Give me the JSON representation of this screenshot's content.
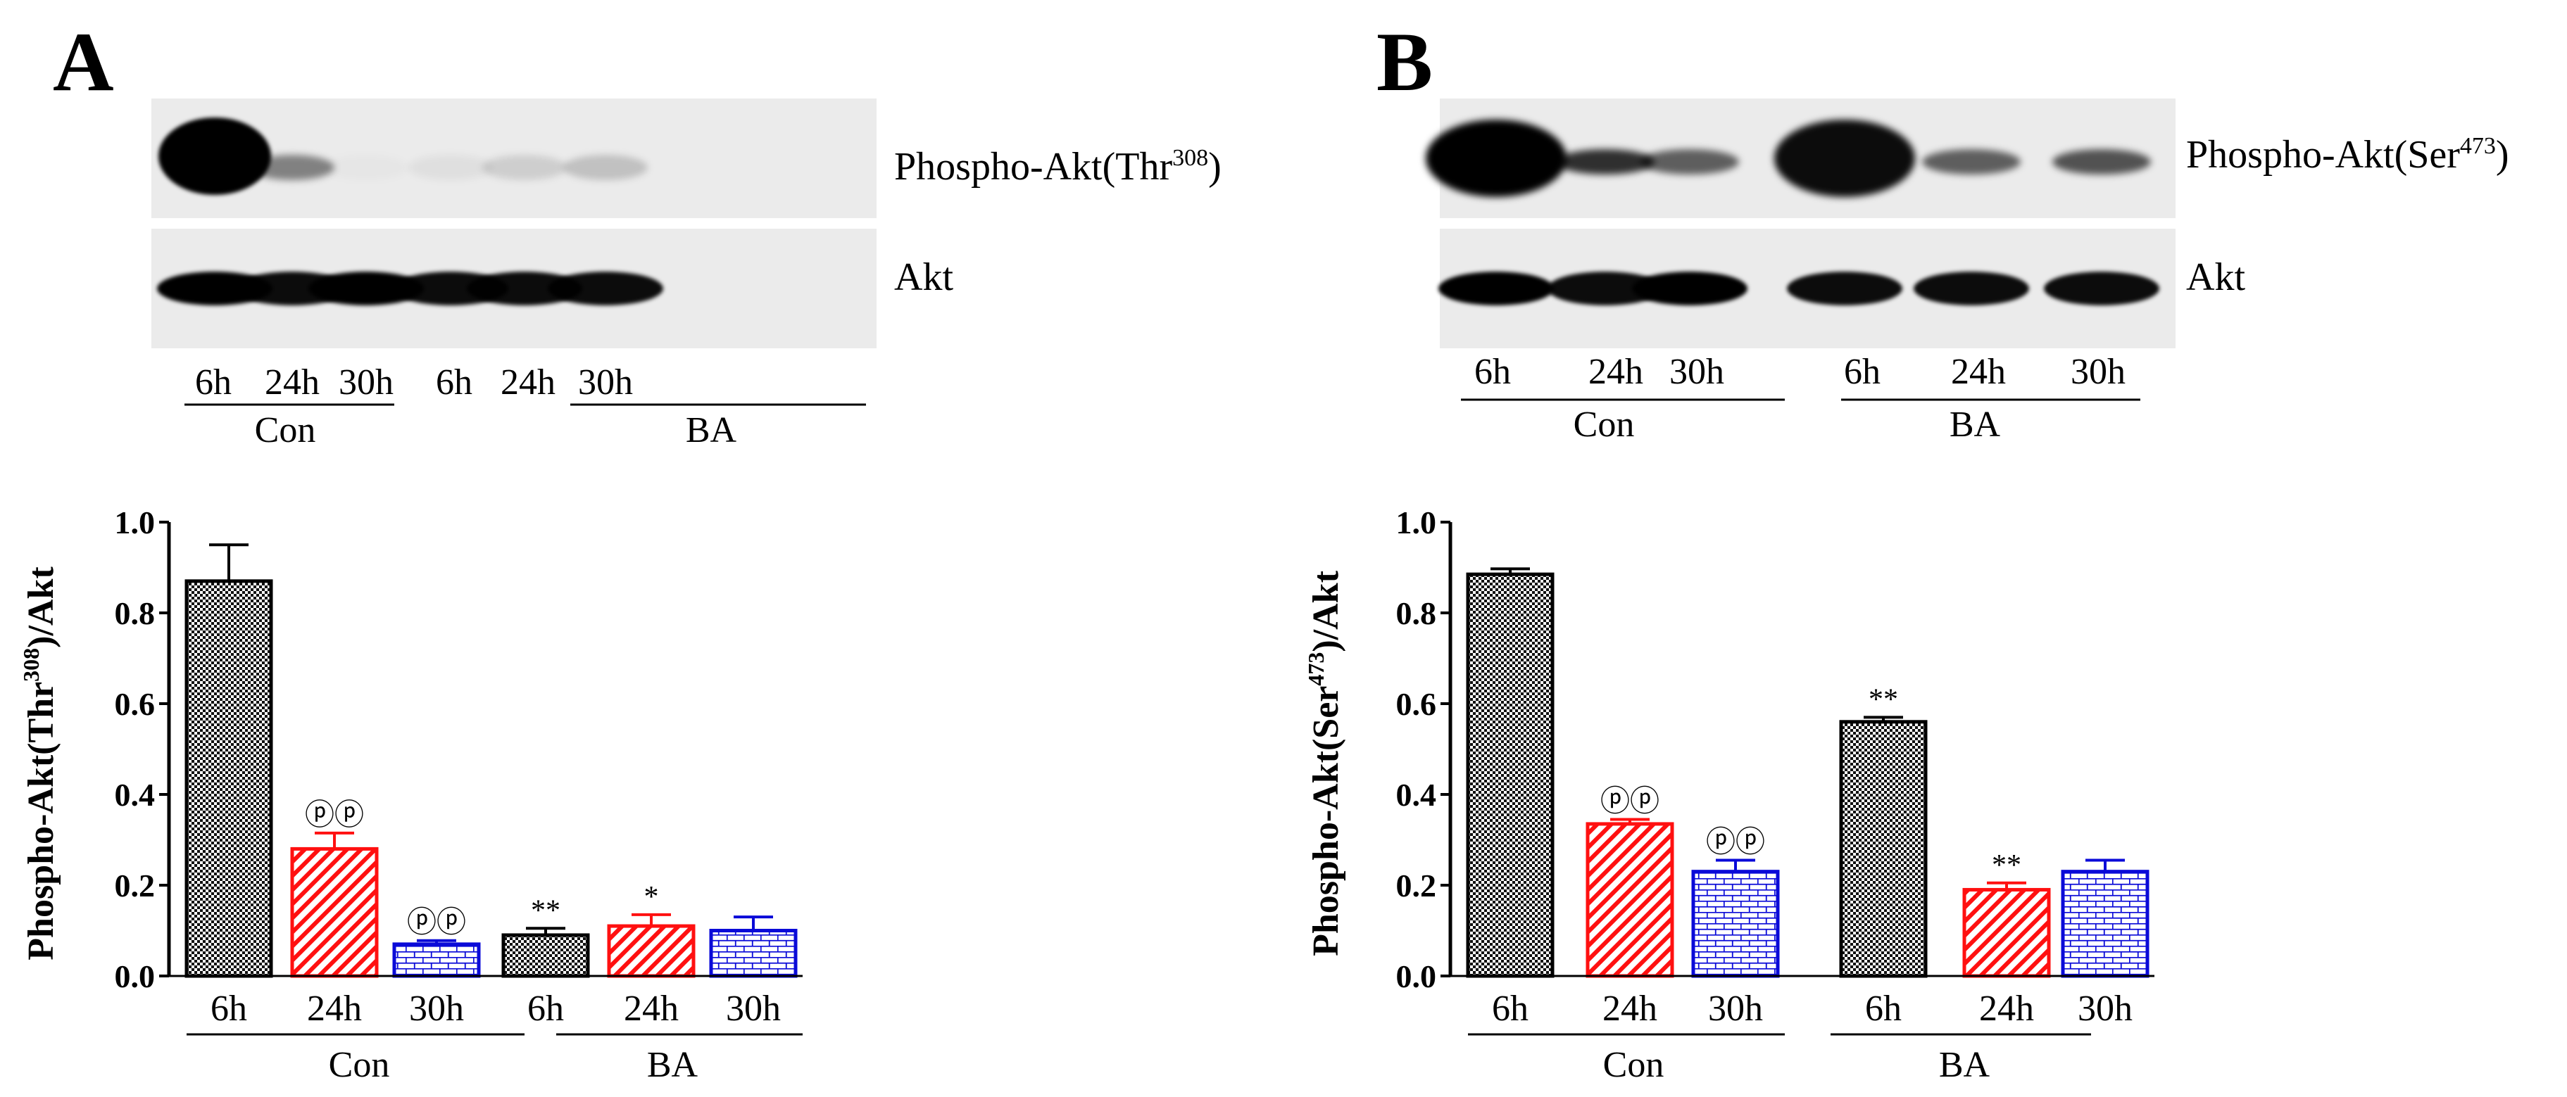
{
  "panels": [
    {
      "letter": "A",
      "blot": {
        "phospho_label": "Phospho-Akt(Thr",
        "phospho_sup": "308",
        "phospho_close": ")",
        "total_label": "Akt",
        "lanes": [
          "6h",
          "24h",
          "30h",
          "6h",
          "24h",
          "30h"
        ],
        "groups": [
          "Con",
          "BA"
        ],
        "phospho_band_intensity": [
          1.0,
          0.45,
          0.02,
          0.05,
          0.12,
          0.18
        ],
        "total_band_intensity": [
          1.0,
          0.95,
          1.0,
          0.95,
          0.95,
          0.95
        ]
      },
      "chart_data": {
        "type": "bar",
        "categories": [
          "6h",
          "24h",
          "30h",
          "6h",
          "24h",
          "30h"
        ],
        "groups": [
          {
            "name": "Con",
            "categories": [
              "6h",
              "24h",
              "30h"
            ]
          },
          {
            "name": "BA",
            "categories": [
              "6h",
              "24h",
              "30h"
            ]
          }
        ],
        "values": [
          0.87,
          0.28,
          0.07,
          0.09,
          0.11,
          0.1
        ],
        "errors": [
          0.08,
          0.035,
          0.008,
          0.015,
          0.025,
          0.03
        ],
        "markers": [
          "",
          "ⓟⓟ",
          "ⓟⓟ",
          "**",
          "*",
          ""
        ],
        "fills": [
          "checker",
          "red-diagonal",
          "blue-brick",
          "checker",
          "red-diagonal",
          "blue-brick"
        ],
        "ylabel_pre": "Phospho-Akt(Thr",
        "ylabel_sup": "308",
        "ylabel_post": ")/Akt",
        "ylim": [
          0.0,
          1.0
        ],
        "yticks": [
          "0.0",
          "0.2",
          "0.4",
          "0.6",
          "0.8",
          "1.0"
        ]
      }
    },
    {
      "letter": "B",
      "blot": {
        "phospho_label": "Phospho-Akt(Ser",
        "phospho_sup": "473",
        "phospho_close": ")",
        "total_label": "Akt",
        "lanes": [
          "6h",
          "24h",
          "30h",
          "6h",
          "24h",
          "30h"
        ],
        "groups": [
          "Con",
          "BA"
        ],
        "phospho_band_intensity": [
          1.0,
          0.8,
          0.6,
          0.95,
          0.6,
          0.65
        ],
        "total_band_intensity": [
          1.0,
          0.95,
          1.0,
          0.95,
          0.95,
          0.95
        ]
      },
      "chart_data": {
        "type": "bar",
        "categories": [
          "6h",
          "24h",
          "30h",
          "6h",
          "24h",
          "30h"
        ],
        "groups": [
          {
            "name": "Con",
            "categories": [
              "6h",
              "24h",
              "30h"
            ]
          },
          {
            "name": "BA",
            "categories": [
              "6h",
              "24h",
              "30h"
            ]
          }
        ],
        "values": [
          0.885,
          0.335,
          0.23,
          0.56,
          0.19,
          0.23
        ],
        "errors": [
          0.012,
          0.01,
          0.025,
          0.01,
          0.015,
          0.025
        ],
        "markers": [
          "",
          "ⓟⓟ",
          "ⓟⓟ",
          "**",
          "**",
          ""
        ],
        "fills": [
          "checker",
          "red-diagonal",
          "blue-brick",
          "checker",
          "red-diagonal",
          "blue-brick"
        ],
        "ylabel_pre": "Phospho-Akt(Ser",
        "ylabel_sup": "473",
        "ylabel_post": ")/Akt",
        "ylim": [
          0.0,
          1.0
        ],
        "yticks": [
          "0.0",
          "0.2",
          "0.4",
          "0.6",
          "0.8",
          "1.0"
        ]
      }
    }
  ],
  "colors": {
    "red": "#ff1010",
    "blue": "#0a0ad8",
    "checker_dark": "#111111",
    "checker_light": "#ffffff",
    "blot_background": "#ebebeb",
    "band": "#000000"
  }
}
